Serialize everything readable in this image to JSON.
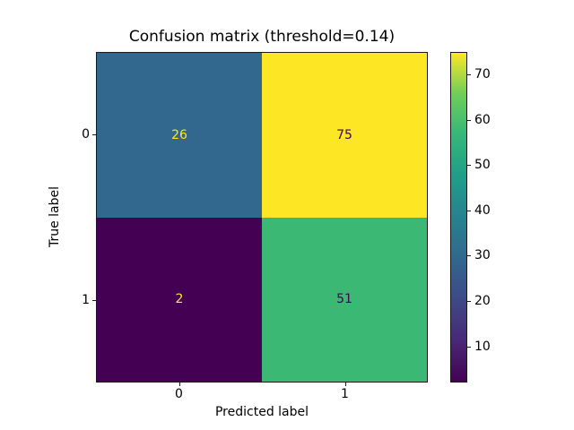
{
  "figure": {
    "title": "Confusion matrix (threshold=0.14)"
  },
  "chart_data": {
    "type": "heatmap",
    "title": "Confusion matrix (threshold=0.14)",
    "xlabel": "Predicted label",
    "ylabel": "True label",
    "x_ticklabels": [
      "0",
      "1"
    ],
    "y_ticklabels": [
      "0",
      "1"
    ],
    "matrix": [
      [
        26,
        75
      ],
      [
        2,
        51
      ]
    ],
    "vmin": 2,
    "vmax": 75,
    "colormap": "viridis",
    "grid": false,
    "legend_position": "right-colorbar",
    "colorbar_ticks": [
      10,
      20,
      30,
      40,
      50,
      60,
      70
    ],
    "cell_colors": [
      [
        "#33688e",
        "#fde725"
      ],
      [
        "#440154",
        "#3bb873"
      ]
    ],
    "cell_text_colors": [
      [
        "#fde725",
        "#440154"
      ],
      [
        "#fde725",
        "#440154"
      ]
    ],
    "colormap_stops": [
      "#440154",
      "#482878",
      "#3e4989",
      "#31688e",
      "#26828e",
      "#1f9e89",
      "#35b779",
      "#6ece58",
      "#fde725"
    ]
  }
}
